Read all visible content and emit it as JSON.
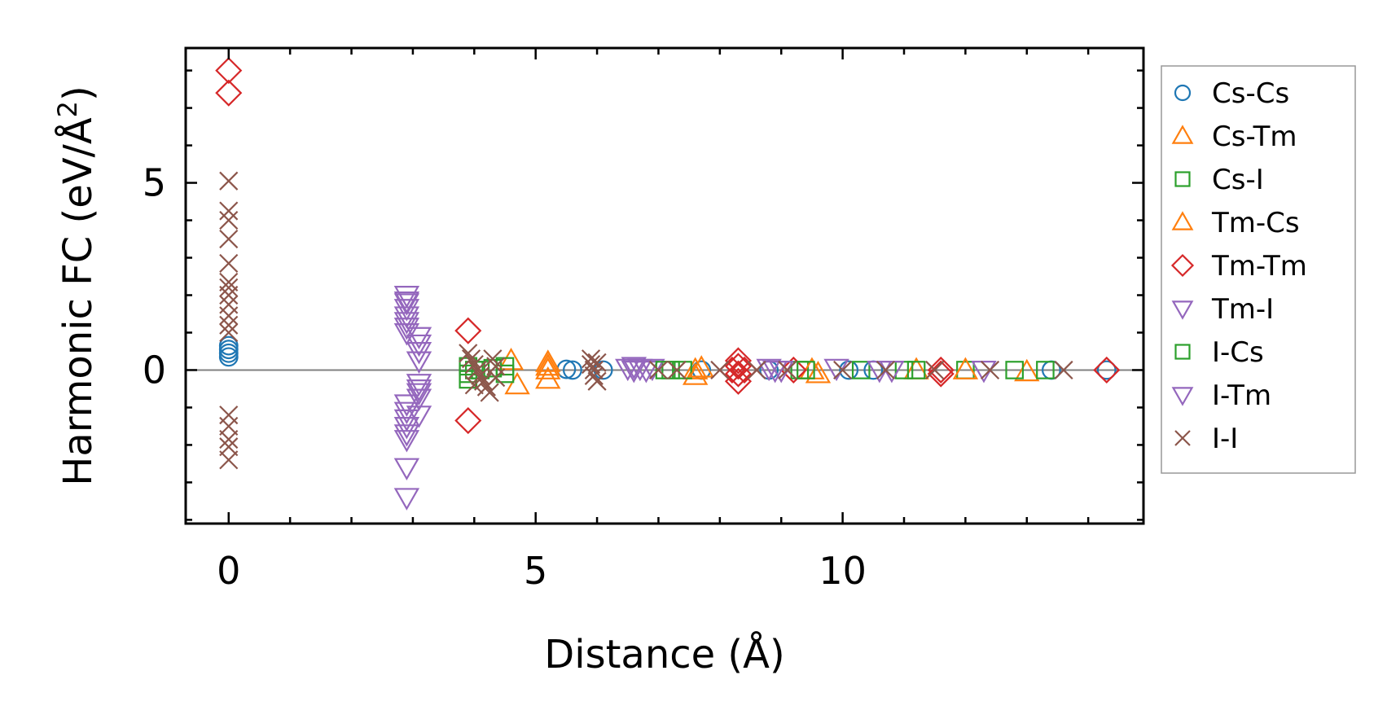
{
  "chart_data": {
    "type": "scatter",
    "xlabel": "Distance (Å)",
    "ylabel": "Harmonic FC (eV/Å",
    "ylabel_sup": "2",
    "ylabel_close": ")",
    "xlim": [
      -0.7,
      14.9
    ],
    "ylim": [
      -4.1,
      8.6
    ],
    "xticks": [
      0,
      5,
      10
    ],
    "yticks": [
      0,
      5
    ],
    "x_minor_step": 1,
    "y_minor_step": 1,
    "zero_line": true,
    "grid": false,
    "legend_position": "outside-right",
    "series": [
      {
        "name": "Cs-Cs",
        "marker": "circle",
        "color": "#1f77b4",
        "points": [
          [
            0,
            0.35
          ],
          [
            0,
            0.45
          ],
          [
            0,
            0.55
          ],
          [
            0,
            0.65
          ],
          [
            5.5,
            0.02
          ],
          [
            5.6,
            0.0
          ],
          [
            6.1,
            0.0
          ],
          [
            7.7,
            0.0
          ],
          [
            8.8,
            0.0
          ],
          [
            10.1,
            0.0
          ],
          [
            10.5,
            0.0
          ],
          [
            13.4,
            0.0
          ],
          [
            14.3,
            0.0
          ]
        ]
      },
      {
        "name": "Cs-Tm",
        "marker": "triangle-up",
        "color": "#ff7f0e",
        "points": [
          [
            4.6,
            0.25
          ],
          [
            4.7,
            -0.4
          ],
          [
            5.2,
            0.2
          ],
          [
            5.2,
            0.0
          ],
          [
            5.2,
            -0.25
          ],
          [
            7.6,
            0.0
          ],
          [
            7.6,
            -0.15
          ],
          [
            9.6,
            -0.1
          ],
          [
            11.2,
            0.0
          ],
          [
            13.0,
            -0.05
          ]
        ]
      },
      {
        "name": "Cs-I",
        "marker": "square",
        "color": "#2ca02c",
        "points": [
          [
            3.9,
            0.1
          ],
          [
            3.9,
            -0.1
          ],
          [
            3.9,
            -0.25
          ],
          [
            4.1,
            0.0
          ],
          [
            4.3,
            0.05
          ],
          [
            4.5,
            0.1
          ],
          [
            4.5,
            -0.1
          ],
          [
            7.2,
            0.0
          ],
          [
            7.4,
            0.0
          ],
          [
            9.3,
            0.0
          ],
          [
            10.3,
            0.0
          ],
          [
            11.2,
            0.0
          ],
          [
            12.0,
            0.0
          ],
          [
            12.8,
            0.0
          ],
          [
            13.3,
            0.0
          ]
        ]
      },
      {
        "name": "Tm-Cs",
        "marker": "triangle-up",
        "color": "#ff7f0e",
        "points": [
          [
            5.2,
            0.1
          ],
          [
            7.7,
            0.05
          ],
          [
            9.5,
            0.0
          ],
          [
            12.0,
            0.0
          ]
        ]
      },
      {
        "name": "Tm-Tm",
        "marker": "diamond",
        "color": "#d62728",
        "points": [
          [
            0,
            8.0
          ],
          [
            0,
            7.4
          ],
          [
            3.9,
            1.05
          ],
          [
            3.9,
            -1.35
          ],
          [
            8.3,
            0.25
          ],
          [
            8.3,
            0.1
          ],
          [
            8.3,
            -0.1
          ],
          [
            8.3,
            -0.3
          ],
          [
            8.2,
            0.0
          ],
          [
            8.4,
            0.0
          ],
          [
            9.2,
            0.0
          ],
          [
            11.6,
            0.0
          ],
          [
            11.6,
            -0.1
          ],
          [
            14.3,
            0.0
          ]
        ]
      },
      {
        "name": "Tm-I",
        "marker": "triangle-down",
        "color": "#9467bd",
        "points": [
          [
            2.9,
            2.0
          ],
          [
            2.9,
            1.85
          ],
          [
            2.9,
            1.65
          ],
          [
            2.9,
            1.45
          ],
          [
            2.9,
            1.15
          ],
          [
            2.9,
            1.0
          ],
          [
            2.9,
            -0.9
          ],
          [
            2.9,
            -1.1
          ],
          [
            2.9,
            -1.3
          ],
          [
            2.9,
            -1.5
          ],
          [
            2.9,
            -1.7
          ],
          [
            2.9,
            -1.85
          ],
          [
            2.9,
            -2.6
          ],
          [
            2.9,
            -3.4
          ],
          [
            3.1,
            0.9
          ],
          [
            3.1,
            0.7
          ],
          [
            3.1,
            0.5
          ],
          [
            3.1,
            0.25
          ],
          [
            3.1,
            -0.35
          ],
          [
            3.1,
            -0.5
          ],
          [
            3.1,
            -0.75
          ],
          [
            3.1,
            -1.2
          ],
          [
            6.5,
            0.05
          ],
          [
            6.6,
            0.0
          ],
          [
            6.7,
            0.05
          ],
          [
            6.8,
            0.0
          ],
          [
            6.9,
            0.05
          ],
          [
            8.8,
            0.05
          ],
          [
            9.0,
            0.0
          ],
          [
            9.9,
            0.05
          ],
          [
            10.6,
            0.0
          ],
          [
            12.3,
            0.0
          ]
        ]
      },
      {
        "name": "I-Cs",
        "marker": "square",
        "color": "#2ca02c",
        "points": [
          [
            4.0,
            0.0
          ],
          [
            7.1,
            0.0
          ],
          [
            9.4,
            0.0
          ],
          [
            11.0,
            0.0
          ]
        ]
      },
      {
        "name": "I-Tm",
        "marker": "triangle-down",
        "color": "#9467bd",
        "points": [
          [
            2.9,
            1.8
          ],
          [
            2.9,
            1.3
          ],
          [
            3.1,
            -0.6
          ],
          [
            6.6,
            0.1
          ],
          [
            8.9,
            0.0
          ],
          [
            10.8,
            0.0
          ]
        ]
      },
      {
        "name": "I-I",
        "marker": "x",
        "color": "#8c564b",
        "points": [
          [
            0,
            5.05
          ],
          [
            0,
            4.25
          ],
          [
            0,
            4.0
          ],
          [
            0,
            3.5
          ],
          [
            0,
            2.85
          ],
          [
            0,
            2.35
          ],
          [
            0,
            2.2
          ],
          [
            0,
            2.0
          ],
          [
            0,
            1.75
          ],
          [
            0,
            1.45
          ],
          [
            0,
            1.2
          ],
          [
            0,
            1.0
          ],
          [
            0,
            -1.2
          ],
          [
            0,
            -1.5
          ],
          [
            0,
            -1.85
          ],
          [
            0,
            -2.05
          ],
          [
            0,
            -2.4
          ],
          [
            3.9,
            0.45
          ],
          [
            3.95,
            0.3
          ],
          [
            4.0,
            0.15
          ],
          [
            4.05,
            0.0
          ],
          [
            4.1,
            -0.15
          ],
          [
            4.15,
            -0.3
          ],
          [
            4.2,
            -0.45
          ],
          [
            4.25,
            -0.6
          ],
          [
            4.0,
            -0.4
          ],
          [
            4.3,
            0.3
          ],
          [
            4.35,
            0.1
          ],
          [
            4.35,
            -0.2
          ],
          [
            5.9,
            0.3
          ],
          [
            5.9,
            0.15
          ],
          [
            5.95,
            0.0
          ],
          [
            5.95,
            -0.15
          ],
          [
            6.0,
            -0.3
          ],
          [
            6.0,
            0.2
          ],
          [
            7.0,
            0.0
          ],
          [
            7.3,
            0.0
          ],
          [
            8.0,
            0.0
          ],
          [
            8.6,
            0.0
          ],
          [
            9.1,
            0.0
          ],
          [
            10.0,
            0.0
          ],
          [
            10.7,
            0.0
          ],
          [
            11.5,
            0.0
          ],
          [
            12.4,
            0.0
          ],
          [
            13.6,
            0.0
          ]
        ]
      }
    ]
  }
}
